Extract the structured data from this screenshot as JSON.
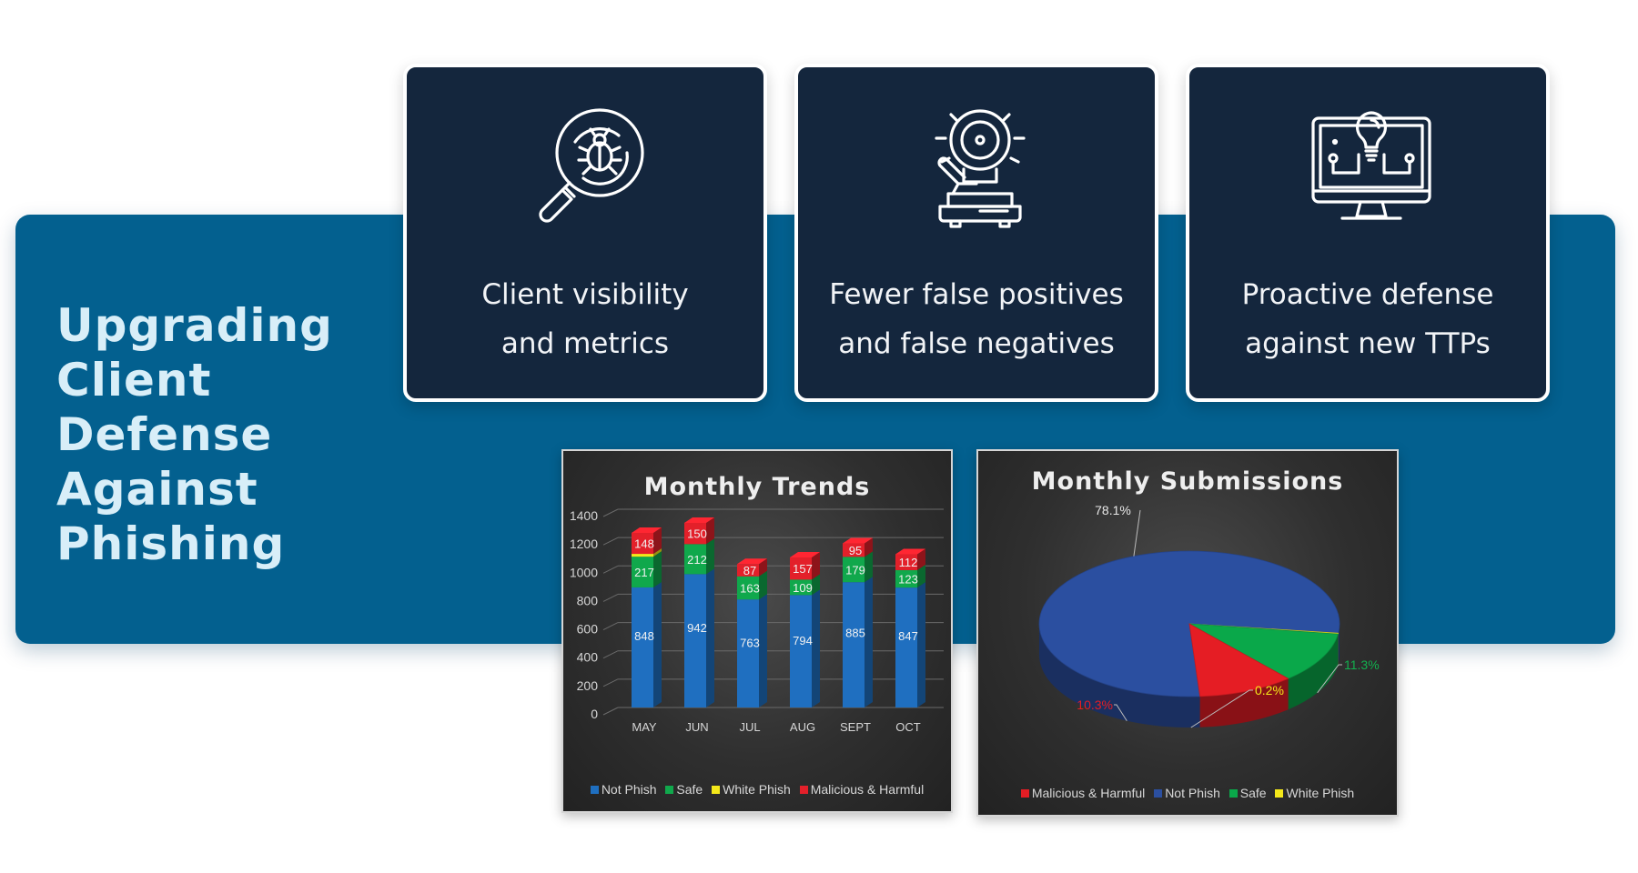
{
  "headline": {
    "lines": [
      "Upgrading",
      "Client",
      "Defense",
      "Against",
      "Phishing"
    ]
  },
  "cards": [
    {
      "icon": "magnifier-bug-icon",
      "line1": "Client visibility",
      "line2": "and metrics"
    },
    {
      "icon": "alarm-bell-icon",
      "line1": "Fewer false positives",
      "line2": "and false negatives"
    },
    {
      "icon": "monitor-lightbulb-icon",
      "line1": "Proactive defense",
      "line2": "against new TTPs"
    }
  ],
  "colors": {
    "band": "#03608f",
    "card": "#14263d",
    "not_phish": "#1f6fc0",
    "safe": "#10a84c",
    "white_phish": "#f4e81a",
    "malicious": "#e3202a"
  },
  "chart_data": [
    {
      "type": "bar",
      "stacked": true,
      "title": "Monthly Trends",
      "categories": [
        "MAY",
        "JUN",
        "JUL",
        "AUG",
        "SEPT",
        "OCT"
      ],
      "y_ticks": [
        "0",
        "200",
        "400",
        "600",
        "800",
        "1000",
        "1200",
        "1400"
      ],
      "ylim": [
        0,
        1400
      ],
      "grid": true,
      "legend_position": "bottom",
      "series": [
        {
          "name": "Not Phish",
          "values": [
            848,
            942,
            763,
            794,
            885,
            847
          ],
          "color": "#1f6fc0"
        },
        {
          "name": "Safe",
          "values": [
            217,
            212,
            163,
            109,
            179,
            123
          ],
          "color": "#10a84c"
        },
        {
          "name": "White Phish",
          "values": [
            20,
            0,
            0,
            0,
            0,
            0
          ],
          "color": "#f4e81a"
        },
        {
          "name": "Malicious & Harmful",
          "values": [
            148,
            150,
            87,
            157,
            95,
            112
          ],
          "color": "#e3202a"
        }
      ],
      "data_labels": {
        "Not Phish": [
          "848",
          "942",
          "763",
          "794",
          "885",
          "847"
        ],
        "Safe": [
          "217",
          "212",
          "163",
          "109",
          "179",
          "123"
        ],
        "Malicious & Harmful": [
          "148",
          "150",
          "87",
          "157",
          "95",
          "112"
        ]
      }
    },
    {
      "type": "pie",
      "three_d": true,
      "title": "Monthly Submissions",
      "legend_position": "bottom",
      "legend": [
        "Malicious & Harmful",
        "Not Phish",
        "Safe",
        "White Phish"
      ],
      "slices": [
        {
          "name": "Not Phish",
          "value": 78.1,
          "label": "78.1%",
          "color": "#2b4fa0"
        },
        {
          "name": "Malicious & Harmful",
          "value": 10.3,
          "label": "10.3%",
          "color": "#e51d24"
        },
        {
          "name": "Safe",
          "value": 11.3,
          "label": "11.3%",
          "color": "#0aa84a"
        },
        {
          "name": "White Phish",
          "value": 0.2,
          "label": "0.2%",
          "color": "#f4e81a"
        }
      ]
    }
  ]
}
